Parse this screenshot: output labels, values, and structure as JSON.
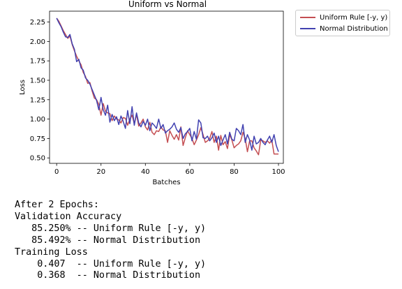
{
  "chart_data": {
    "type": "line",
    "title": "Uniform vs Normal",
    "xlabel": "Batches",
    "ylabel": "Loss",
    "xlim": [
      -3.2,
      102.2
    ],
    "ylim": [
      0.43,
      2.39
    ],
    "xticks": [
      0,
      20,
      40,
      60,
      80,
      100
    ],
    "yticks": [
      0.5,
      0.75,
      1.0,
      1.25,
      1.5,
      1.75,
      2.0,
      2.25
    ],
    "ytick_labels": [
      "0.50",
      "0.75",
      "1.00",
      "1.25",
      "1.50",
      "1.75",
      "2.00",
      "2.25"
    ],
    "grid": false,
    "legend_placement": "outside-top-right",
    "series": [
      {
        "name": "Uniform Rule [-y, y)",
        "color": "#c44e52",
        "values": [
          2.3,
          2.26,
          2.2,
          2.14,
          2.09,
          2.04,
          2.07,
          1.96,
          1.88,
          1.81,
          1.75,
          1.7,
          1.6,
          1.55,
          1.46,
          1.47,
          1.36,
          1.27,
          1.25,
          1.19,
          1.05,
          1.2,
          1.1,
          1.08,
          1.07,
          0.98,
          1.04,
          1.0,
          0.99,
          0.95,
          1.02,
          1.01,
          0.92,
          1.0,
          1.05,
          0.94,
          1.06,
          0.91,
          0.95,
          1.0,
          0.9,
          0.86,
          0.96,
          0.83,
          0.8,
          0.85,
          0.84,
          0.9,
          0.86,
          0.85,
          0.7,
          0.85,
          0.79,
          0.74,
          0.8,
          0.73,
          0.9,
          0.66,
          0.76,
          0.85,
          0.8,
          0.75,
          0.67,
          0.73,
          0.8,
          0.89,
          0.8,
          0.7,
          0.72,
          0.75,
          0.84,
          0.7,
          0.78,
          0.6,
          0.79,
          0.67,
          0.71,
          0.62,
          0.8,
          0.73,
          0.63,
          0.66,
          0.68,
          0.72,
          0.83,
          0.75,
          0.58,
          0.72,
          0.72,
          0.63,
          0.59,
          0.54,
          0.73,
          0.72,
          0.7,
          0.72,
          0.69,
          0.73,
          0.55,
          0.55,
          0.55
        ]
      },
      {
        "name": "Normal Distribution",
        "color": "#4141b0",
        "values": [
          2.3,
          2.24,
          2.19,
          2.12,
          2.06,
          2.05,
          2.09,
          1.97,
          1.9,
          1.74,
          1.77,
          1.66,
          1.63,
          1.53,
          1.5,
          1.45,
          1.38,
          1.31,
          1.24,
          1.12,
          1.28,
          1.12,
          1.05,
          1.18,
          0.96,
          1.06,
          0.98,
          1.03,
          0.93,
          1.04,
          0.97,
          0.88,
          1.11,
          0.94,
          1.16,
          0.92,
          1.08,
          0.95,
          0.9,
          0.97,
          0.92,
          1.0,
          0.85,
          0.95,
          0.92,
          0.88,
          1.0,
          0.88,
          0.93,
          0.82,
          0.85,
          0.87,
          0.9,
          0.95,
          0.87,
          0.83,
          0.89,
          0.75,
          0.81,
          0.84,
          0.88,
          0.72,
          0.84,
          0.74,
          0.99,
          0.95,
          0.76,
          0.75,
          0.78,
          0.72,
          0.76,
          0.82,
          0.7,
          0.78,
          0.66,
          0.73,
          0.8,
          0.68,
          0.83,
          0.74,
          0.72,
          0.88,
          0.85,
          0.8,
          0.93,
          0.7,
          0.8,
          0.73,
          0.6,
          0.78,
          0.68,
          0.7,
          0.75,
          0.7,
          0.67,
          0.73,
          0.78,
          0.7,
          0.8,
          0.66,
          0.58
        ]
      }
    ]
  },
  "output": {
    "lines": [
      "After 2 Epochs:",
      "Validation Accuracy",
      "   85.250% -- Uniform Rule [-y, y)",
      "   85.492% -- Normal Distribution",
      "Training Loss",
      "    0.407  -- Uniform Rule [-y, y)",
      "    0.368  -- Normal Distribution"
    ]
  }
}
